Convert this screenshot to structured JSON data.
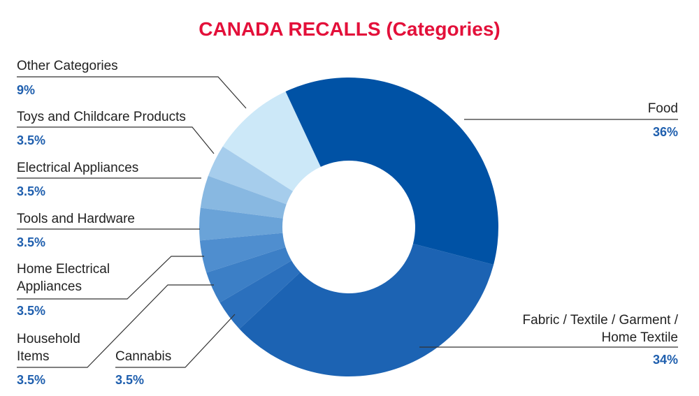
{
  "chart_data": {
    "type": "donut",
    "title": "CANADA RECALLS (Categories)",
    "categories": [
      "Food",
      "Fabric / Textile / Garment / Home Textile",
      "Cannabis",
      "Household Items",
      "Home Electrical Appliances",
      "Tools and Hardware",
      "Electrical Appliances",
      "Toys and Childcare Products",
      "Other Categories"
    ],
    "values": [
      36,
      34,
      3.5,
      3.5,
      3.5,
      3.5,
      3.5,
      3.5,
      9
    ],
    "value_labels": [
      "36%",
      "34%",
      "3.5%",
      "3.5%",
      "3.5%",
      "3.5%",
      "3.5%",
      "3.5%",
      "9%"
    ],
    "colors": [
      "#0052a5",
      "#1c63b3",
      "#2b70bd",
      "#3c7fc6",
      "#4f8ecf",
      "#6aa3d8",
      "#88b8e1",
      "#a6cdec",
      "#cce8f8"
    ]
  }
}
